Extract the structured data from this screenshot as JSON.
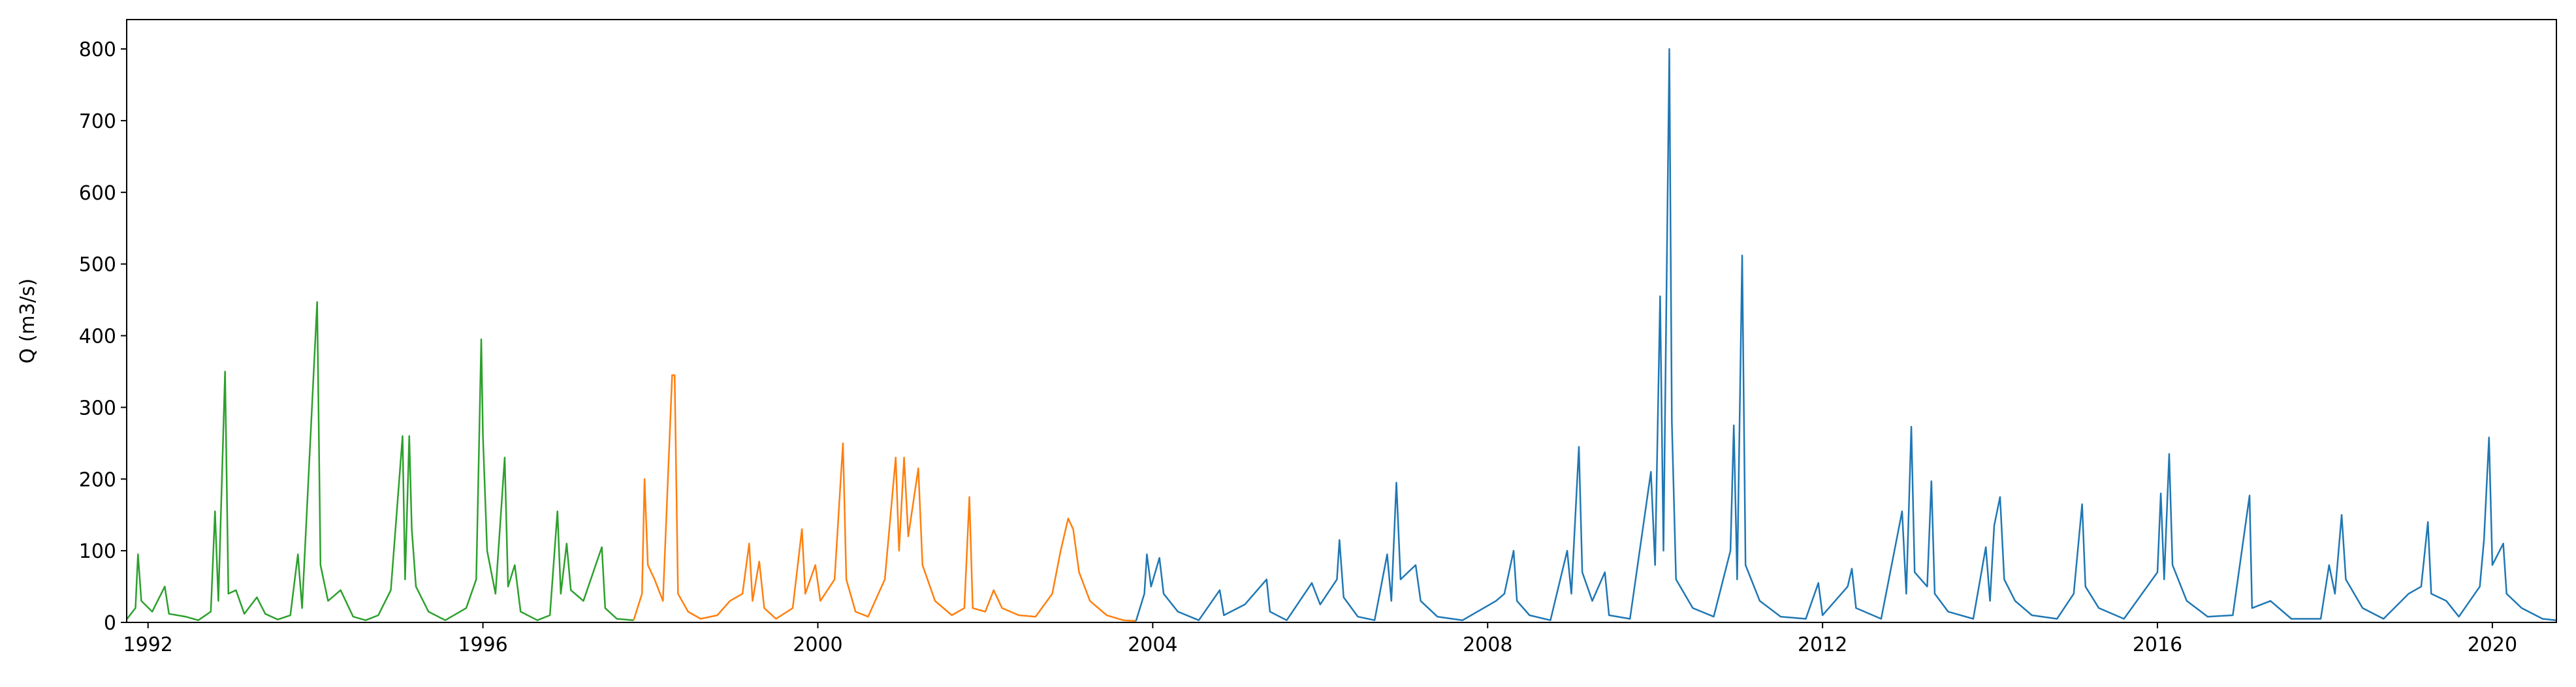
{
  "chart_data": {
    "type": "line",
    "ylabel": "Q (m3/s)",
    "xlim": [
      1991.745,
      2020.765
    ],
    "ylim": [
      0,
      841
    ],
    "xticks": [
      1992,
      1996,
      2000,
      2004,
      2008,
      2012,
      2016,
      2020
    ],
    "yticks": [
      0,
      100,
      200,
      300,
      400,
      500,
      600,
      700,
      800
    ],
    "series": [
      {
        "color": "#2ca02c",
        "x": [
          1991.75,
          1991.85,
          1991.88,
          1991.92,
          1992.05,
          1992.2,
          1992.25,
          1992.45,
          1992.6,
          1992.75,
          1992.8,
          1992.84,
          1992.92,
          1992.96,
          1993.05,
          1993.15,
          1993.3,
          1993.4,
          1993.55,
          1993.7,
          1993.79,
          1993.84,
          1994.02,
          1994.06,
          1994.15,
          1994.3,
          1994.45,
          1994.6,
          1994.75,
          1994.9,
          1995.04,
          1995.07,
          1995.12,
          1995.15,
          1995.2,
          1995.35,
          1995.55,
          1995.8,
          1995.92,
          1995.98,
          1996.0,
          1996.05,
          1996.15,
          1996.26,
          1996.3,
          1996.38,
          1996.45,
          1996.65,
          1996.8,
          1996.89,
          1996.93,
          1997.0,
          1997.05,
          1997.2,
          1997.42,
          1997.46,
          1997.6,
          1997.8
        ],
        "values": [
          5,
          20,
          95,
          30,
          15,
          50,
          12,
          8,
          3,
          15,
          155,
          30,
          350,
          40,
          45,
          12,
          35,
          12,
          4,
          10,
          95,
          20,
          447,
          80,
          30,
          45,
          8,
          3,
          10,
          45,
          260,
          60,
          260,
          130,
          50,
          15,
          3,
          20,
          60,
          395,
          260,
          100,
          40,
          230,
          50,
          80,
          15,
          3,
          10,
          155,
          40,
          110,
          45,
          30,
          105,
          20,
          5,
          3
        ]
      },
      {
        "color": "#ff7f0e",
        "x": [
          1997.8,
          1997.9,
          1997.93,
          1997.97,
          1998.05,
          1998.15,
          1998.26,
          1998.29,
          1998.33,
          1998.45,
          1998.6,
          1998.8,
          1998.95,
          1999.1,
          1999.18,
          1999.22,
          1999.3,
          1999.36,
          1999.5,
          1999.7,
          1999.81,
          1999.85,
          1999.97,
          2000.03,
          2000.2,
          2000.3,
          2000.34,
          2000.45,
          2000.6,
          2000.8,
          2000.93,
          2000.97,
          2001.03,
          2001.08,
          2001.2,
          2001.25,
          2001.4,
          2001.6,
          2001.75,
          2001.81,
          2001.85,
          2002.0,
          2002.1,
          2002.2,
          2002.4,
          2002.6,
          2002.8,
          2002.9,
          2002.99,
          2003.05,
          2003.12,
          2003.25,
          2003.45,
          2003.65,
          2003.8
        ],
        "values": [
          3,
          40,
          200,
          80,
          60,
          30,
          345,
          345,
          40,
          15,
          5,
          10,
          30,
          40,
          110,
          30,
          85,
          20,
          5,
          20,
          130,
          40,
          80,
          30,
          60,
          250,
          60,
          15,
          8,
          60,
          230,
          100,
          230,
          120,
          215,
          80,
          30,
          10,
          20,
          175,
          20,
          15,
          45,
          20,
          10,
          8,
          40,
          100,
          145,
          130,
          70,
          30,
          10,
          3,
          2
        ]
      },
      {
        "color": "#1f77b4",
        "x": [
          2003.8,
          2003.9,
          2003.93,
          2003.98,
          2004.08,
          2004.13,
          2004.3,
          2004.55,
          2004.8,
          2004.85,
          2005.1,
          2005.36,
          2005.4,
          2005.6,
          2005.9,
          2006.0,
          2006.2,
          2006.23,
          2006.28,
          2006.45,
          2006.65,
          2006.8,
          2006.85,
          2006.91,
          2006.96,
          2007.14,
          2007.2,
          2007.4,
          2007.7,
          2008.1,
          2008.2,
          2008.31,
          2008.35,
          2008.5,
          2008.75,
          2008.95,
          2009.0,
          2009.09,
          2009.13,
          2009.25,
          2009.4,
          2009.45,
          2009.7,
          2009.95,
          2010.0,
          2010.06,
          2010.1,
          2010.17,
          2010.2,
          2010.25,
          2010.45,
          2010.7,
          2010.9,
          2010.94,
          2010.98,
          2011.04,
          2011.08,
          2011.25,
          2011.5,
          2011.8,
          2011.95,
          2012.0,
          2012.3,
          2012.35,
          2012.4,
          2012.7,
          2012.95,
          2013.0,
          2013.06,
          2013.1,
          2013.25,
          2013.3,
          2013.34,
          2013.5,
          2013.8,
          2013.95,
          2014.0,
          2014.05,
          2014.12,
          2014.17,
          2014.3,
          2014.5,
          2014.8,
          2015.0,
          2015.1,
          2015.14,
          2015.3,
          2015.6,
          2016.0,
          2016.04,
          2016.08,
          2016.14,
          2016.18,
          2016.35,
          2016.6,
          2016.9,
          2017.1,
          2017.13,
          2017.35,
          2017.6,
          2017.95,
          2018.05,
          2018.12,
          2018.2,
          2018.25,
          2018.45,
          2018.7,
          2019.0,
          2019.15,
          2019.23,
          2019.27,
          2019.45,
          2019.6,
          2019.85,
          2019.9,
          2019.96,
          2020.0,
          2020.13,
          2020.17,
          2020.35,
          2020.6,
          2020.76
        ],
        "values": [
          2,
          40,
          95,
          50,
          90,
          40,
          15,
          3,
          45,
          10,
          25,
          60,
          15,
          3,
          55,
          25,
          60,
          115,
          35,
          8,
          3,
          95,
          30,
          195,
          60,
          80,
          30,
          8,
          3,
          30,
          40,
          100,
          30,
          10,
          3,
          100,
          40,
          245,
          70,
          30,
          70,
          10,
          5,
          210,
          80,
          455,
          100,
          800,
          280,
          60,
          20,
          8,
          100,
          275,
          60,
          512,
          80,
          30,
          8,
          5,
          55,
          10,
          50,
          75,
          20,
          5,
          155,
          40,
          273,
          70,
          50,
          197,
          40,
          15,
          5,
          105,
          30,
          135,
          175,
          60,
          30,
          10,
          5,
          40,
          165,
          50,
          20,
          5,
          70,
          180,
          60,
          235,
          80,
          30,
          8,
          10,
          177,
          20,
          30,
          5,
          5,
          80,
          40,
          150,
          60,
          20,
          5,
          40,
          50,
          140,
          40,
          30,
          8,
          50,
          115,
          258,
          80,
          110,
          40,
          20,
          5,
          3
        ]
      }
    ]
  }
}
